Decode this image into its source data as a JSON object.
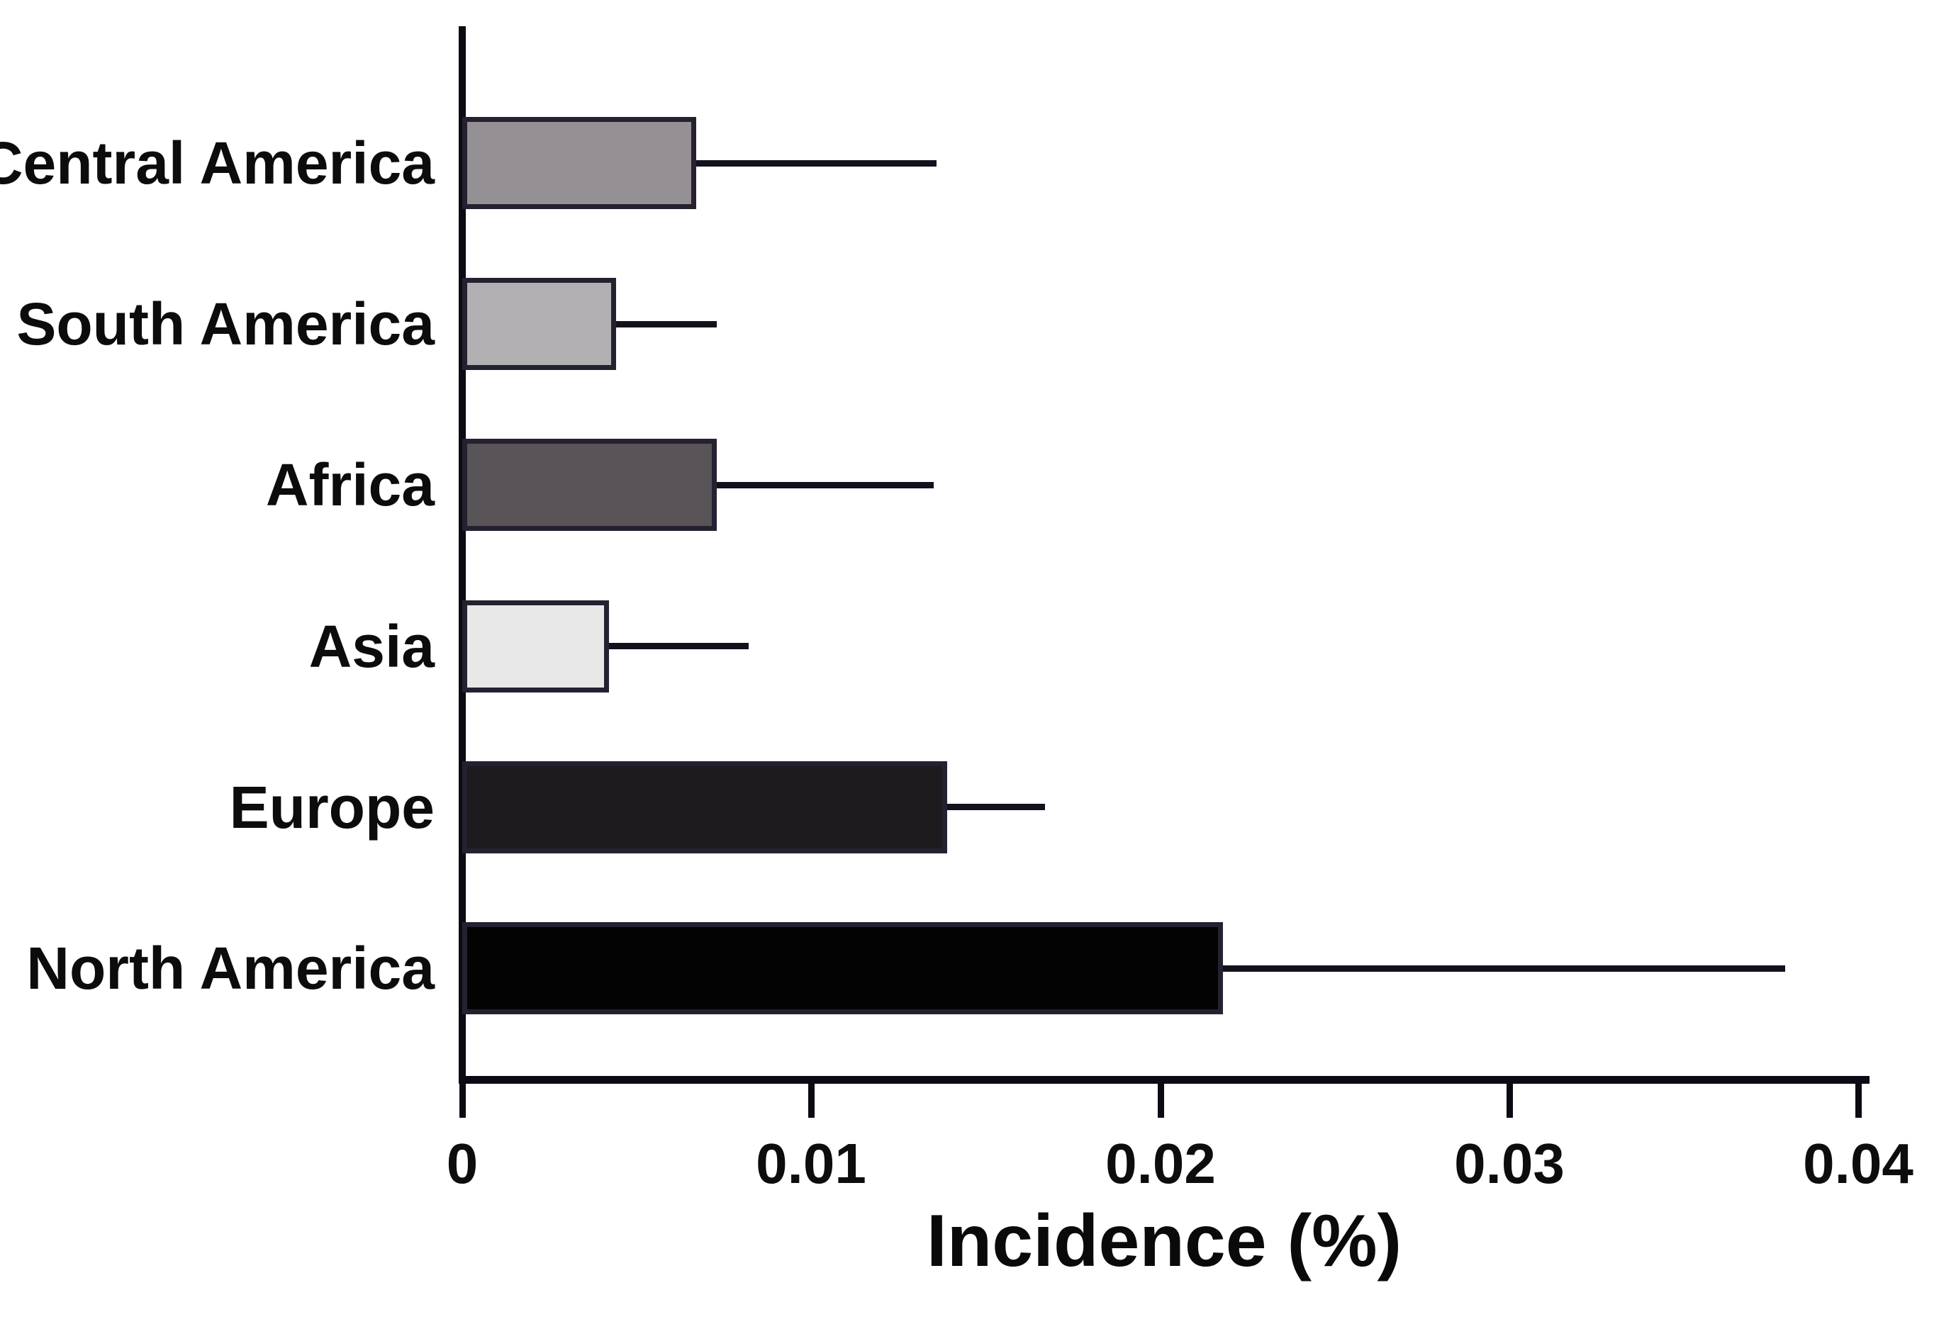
{
  "chart_data": {
    "type": "bar",
    "orientation": "horizontal",
    "title": "",
    "xlabel": "Incidence (%)",
    "ylabel": "",
    "categories": [
      "Central America",
      "South America",
      "Africa",
      "Asia",
      "Europe",
      "North America"
    ],
    "values": [
      0.0067,
      0.0044,
      0.0073,
      0.0042,
      0.0139,
      0.0218
    ],
    "error_upper_ends": [
      0.0136,
      0.0073,
      0.0135,
      0.0082,
      0.0167,
      0.0379
    ],
    "bar_colors": [
      "#949094",
      "#b3b0b3",
      "#585458",
      "#e9e8e9",
      "#1d1b1d",
      "#030303"
    ],
    "bar_border_color": "#262130",
    "axis_color": "#0c0a12",
    "text_color": "#0c0c0c",
    "xlim": [
      0,
      0.04
    ],
    "xticks": [
      0,
      0.01,
      0.02,
      0.03,
      0.04
    ],
    "xtick_labels": [
      "0",
      "0.01",
      "0.02",
      "0.03",
      "0.04"
    ],
    "grid": false,
    "legend": null
  }
}
